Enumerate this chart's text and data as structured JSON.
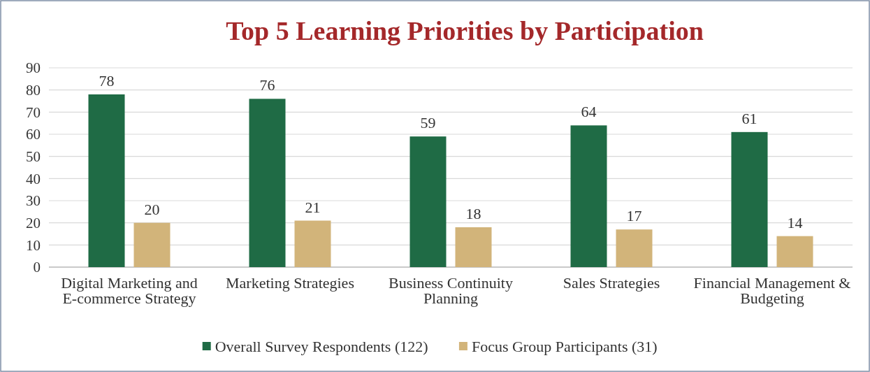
{
  "chart_data": {
    "type": "bar",
    "title": "Top 5 Learning Priorities by Participation",
    "categories": [
      "Digital Marketing and E-commerce Strategy",
      "Marketing Strategies",
      "Business Continuity Planning",
      "Sales Strategies",
      "Financial Management & Budgeting"
    ],
    "series": [
      {
        "name": "Overall Survey Respondents (122)",
        "color": "#1f6b45",
        "values": [
          78,
          76,
          59,
          64,
          61
        ]
      },
      {
        "name": "Focus Group Participants (31)",
        "color": "#d2b47a",
        "values": [
          20,
          21,
          18,
          17,
          14
        ]
      }
    ],
    "ylim": [
      0,
      90
    ],
    "yticks": [
      0,
      10,
      20,
      30,
      40,
      50,
      60,
      70,
      80,
      90
    ],
    "grid": "y",
    "legend": "bottom",
    "data_labels": true
  }
}
